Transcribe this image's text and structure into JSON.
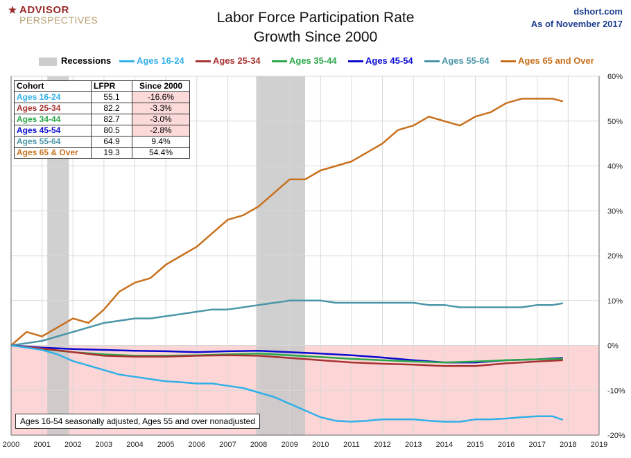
{
  "logo": {
    "line1": "ADVISOR",
    "line2": "PERSPECTIVES"
  },
  "header": {
    "title1": "Labor Force Participation Rate",
    "title2": "Growth Since 2000",
    "site": "dshort.com",
    "asof": "As of November 2017"
  },
  "legend": {
    "recessions": "Recessions",
    "items": [
      {
        "label": "Ages 16-24",
        "color": "#31b0e8"
      },
      {
        "label": "Ages 25-34",
        "color": "#a83232"
      },
      {
        "label": "Ages 35-44",
        "color": "#2aa84a"
      },
      {
        "label": "Ages 45-54",
        "color": "#0a0ad0"
      },
      {
        "label": "Ages 55-64",
        "color": "#4a96a8"
      },
      {
        "label": "Ages 65 and Over",
        "color": "#c8701c"
      }
    ]
  },
  "table": {
    "headers": [
      "Cohort",
      "LFPR",
      "Since 2000"
    ],
    "rows": [
      {
        "cohort": "Ages 16-24",
        "lfpr": "55.1",
        "since": "-16.6%",
        "color": "#31b0e8"
      },
      {
        "cohort": "Ages 25-34",
        "lfpr": "82.2",
        "since": "-3.3%",
        "color": "#a83232"
      },
      {
        "cohort": "Ages 34-44",
        "lfpr": "82.7",
        "since": "-3.0%",
        "color": "#2aa84a"
      },
      {
        "cohort": "Ages 45-54",
        "lfpr": "80.5",
        "since": "-2.8%",
        "color": "#0a0ad0"
      },
      {
        "cohort": "Ages 55-64",
        "lfpr": "64.9",
        "since": "9.4%",
        "color": "#4a96a8"
      },
      {
        "cohort": "Ages 65  & Over",
        "lfpr": "19.3",
        "since": "54.4%",
        "color": "#c8701c"
      }
    ]
  },
  "note": "Ages 16-54 seasonally adjusted, Ages 55 and over nonadjusted",
  "chart_data": {
    "type": "line",
    "xlim": [
      2000,
      2019
    ],
    "ylim": [
      -20,
      60
    ],
    "x_ticks": [
      "2000",
      "2001",
      "2002",
      "2003",
      "2004",
      "2005",
      "2006",
      "2007",
      "2008",
      "2009",
      "2010",
      "2011",
      "2012",
      "2013",
      "2014",
      "2015",
      "2016",
      "2017",
      "2018",
      "2019"
    ],
    "y_ticks": [
      "-20%",
      "-10%",
      "0%",
      "10%",
      "20%",
      "30%",
      "40%",
      "50%",
      "60%"
    ],
    "recessions": [
      [
        2001.17,
        2001.87
      ],
      [
        2007.92,
        2009.5
      ]
    ],
    "negative_shading": true,
    "series": [
      {
        "name": "Ages 65 and Over",
        "color": "#c8701c",
        "x": [
          2000,
          2000.5,
          2001,
          2001.5,
          2002,
          2002.5,
          2003,
          2003.5,
          2004,
          2004.5,
          2005,
          2005.5,
          2006,
          2006.5,
          2007,
          2007.5,
          2008,
          2008.5,
          2009,
          2009.5,
          2010,
          2010.5,
          2011,
          2011.5,
          2012,
          2012.5,
          2013,
          2013.5,
          2014,
          2014.5,
          2015,
          2015.5,
          2016,
          2016.5,
          2017,
          2017.5,
          2017.83
        ],
        "values": [
          0,
          3,
          2,
          4,
          6,
          5,
          8,
          12,
          14,
          15,
          18,
          20,
          22,
          25,
          28,
          29,
          31,
          34,
          37,
          37,
          39,
          40,
          41,
          43,
          45,
          48,
          49,
          51,
          50,
          49,
          51,
          52,
          54,
          55,
          55,
          55,
          54.4
        ]
      },
      {
        "name": "Ages 55-64",
        "color": "#4a96a8",
        "x": [
          2000,
          2000.5,
          2001,
          2001.5,
          2002,
          2002.5,
          2003,
          2003.5,
          2004,
          2004.5,
          2005,
          2005.5,
          2006,
          2006.5,
          2007,
          2007.5,
          2008,
          2008.5,
          2009,
          2009.5,
          2010,
          2010.5,
          2011,
          2011.5,
          2012,
          2012.5,
          2013,
          2013.5,
          2014,
          2014.5,
          2015,
          2015.5,
          2016,
          2016.5,
          2017,
          2017.5,
          2017.83
        ],
        "values": [
          0,
          0.5,
          1,
          2,
          3,
          4,
          5,
          5.5,
          6,
          6,
          6.5,
          7,
          7.5,
          8,
          8,
          8.5,
          9,
          9.5,
          10,
          10,
          10,
          9.5,
          9.5,
          9.5,
          9.5,
          9.5,
          9.5,
          9,
          9,
          8.5,
          8.5,
          8.5,
          8.5,
          8.5,
          9,
          9,
          9.4
        ]
      },
      {
        "name": "Ages 45-54",
        "color": "#0a0ad0",
        "x": [
          2000,
          2001,
          2002,
          2003,
          2004,
          2005,
          2006,
          2007,
          2008,
          2009,
          2010,
          2011,
          2012,
          2013,
          2014,
          2015,
          2016,
          2017,
          2017.83
        ],
        "values": [
          0,
          -0.5,
          -0.8,
          -1,
          -1.2,
          -1.3,
          -1.5,
          -1.3,
          -1.2,
          -1.5,
          -1.8,
          -2.2,
          -2.7,
          -3.3,
          -3.8,
          -3.8,
          -3.3,
          -3.1,
          -2.8
        ]
      },
      {
        "name": "Ages 35-44",
        "color": "#2aa84a",
        "x": [
          2000,
          2001,
          2002,
          2003,
          2004,
          2005,
          2006,
          2007,
          2008,
          2009,
          2010,
          2011,
          2012,
          2013,
          2014,
          2015,
          2016,
          2017,
          2017.83
        ],
        "values": [
          0,
          -0.8,
          -1.5,
          -2,
          -2.3,
          -2.3,
          -2.2,
          -2,
          -1.8,
          -2.2,
          -2.6,
          -3,
          -3.3,
          -3.6,
          -3.8,
          -3.6,
          -3.3,
          -3.1,
          -3.0
        ]
      },
      {
        "name": "Ages 25-34",
        "color": "#a83232",
        "x": [
          2000,
          2001,
          2002,
          2003,
          2004,
          2005,
          2006,
          2007,
          2008,
          2009,
          2010,
          2011,
          2012,
          2013,
          2014,
          2015,
          2016,
          2017,
          2017.83
        ],
        "values": [
          0,
          -0.7,
          -1.5,
          -2.3,
          -2.5,
          -2.5,
          -2.3,
          -2.2,
          -2.3,
          -2.8,
          -3.3,
          -3.8,
          -4.1,
          -4.3,
          -4.6,
          -4.6,
          -4.0,
          -3.6,
          -3.3
        ]
      },
      {
        "name": "Ages 16-24",
        "color": "#31b0e8",
        "x": [
          2000,
          2000.5,
          2001,
          2001.5,
          2002,
          2002.5,
          2003,
          2003.5,
          2004,
          2004.5,
          2005,
          2005.5,
          2006,
          2006.5,
          2007,
          2007.5,
          2008,
          2008.5,
          2009,
          2009.5,
          2010,
          2010.5,
          2011,
          2011.5,
          2012,
          2012.5,
          2013,
          2013.5,
          2014,
          2014.5,
          2015,
          2015.5,
          2016,
          2016.5,
          2017,
          2017.5,
          2017.83
        ],
        "values": [
          0,
          -0.5,
          -1,
          -2,
          -3.5,
          -4.5,
          -5.5,
          -6.5,
          -7,
          -7.5,
          -8,
          -8.2,
          -8.5,
          -8.5,
          -9,
          -9.5,
          -10.5,
          -11.5,
          -13,
          -14.5,
          -16,
          -16.8,
          -17,
          -16.8,
          -16.5,
          -16.5,
          -16.5,
          -16.8,
          -17,
          -17,
          -16.5,
          -16.5,
          -16.3,
          -16,
          -15.8,
          -15.8,
          -16.6
        ]
      }
    ]
  }
}
